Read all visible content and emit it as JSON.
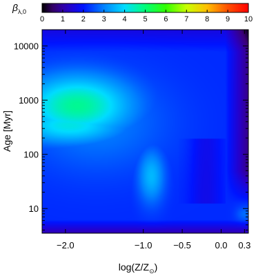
{
  "chart_data": {
    "type": "heatmap",
    "title": "",
    "colorbar": {
      "label_symbol": "β",
      "label_subscript": "λ,0",
      "range": [
        0,
        10
      ],
      "ticks": [
        "0",
        "1",
        "2",
        "3",
        "4",
        "5",
        "6",
        "7",
        "8",
        "9",
        "10"
      ],
      "colormap": "rainbow (black-purple-blue-cyan-green-yellow-red)"
    },
    "x_axis": {
      "label_main": "log(Z/Z",
      "label_sub": "⊙",
      "label_close": ")",
      "range": [
        -2.3,
        0.35
      ],
      "ticks": [
        {
          "value": -2.0,
          "label": "−2.0"
        },
        {
          "value": -1.0,
          "label": "−1.0"
        },
        {
          "value": -0.5,
          "label": "−0.5"
        },
        {
          "value": 0.0,
          "label": "0.0"
        },
        {
          "value": 0.3,
          "label": "0.3"
        }
      ]
    },
    "y_axis": {
      "label": "Age [Myr]",
      "scale": "log",
      "range_myr": [
        3.5,
        20000
      ],
      "ticks": [
        {
          "value": 10,
          "label": "10"
        },
        {
          "value": 100,
          "label": "100"
        },
        {
          "value": 1000,
          "label": "1000"
        },
        {
          "value": 10000,
          "label": "10000"
        }
      ]
    },
    "features": [
      {
        "log_z": -1.85,
        "age_myr": 800,
        "value": 4.8,
        "sigma_x": 0.5,
        "sigma_y": 0.4
      },
      {
        "log_z": -1.95,
        "age_myr": 350,
        "value": 4.2,
        "sigma_x": 0.5,
        "sigma_y": 0.25
      },
      {
        "log_z": -0.9,
        "age_myr": 40,
        "value": 3.6,
        "sigma_x": 0.12,
        "sigma_y": 0.35
      },
      {
        "log_z": 0.3,
        "age_myr": 8,
        "value": 2.8,
        "sigma_x": 0.08,
        "sigma_y": 0.1
      }
    ],
    "background_value": 2.2
  }
}
